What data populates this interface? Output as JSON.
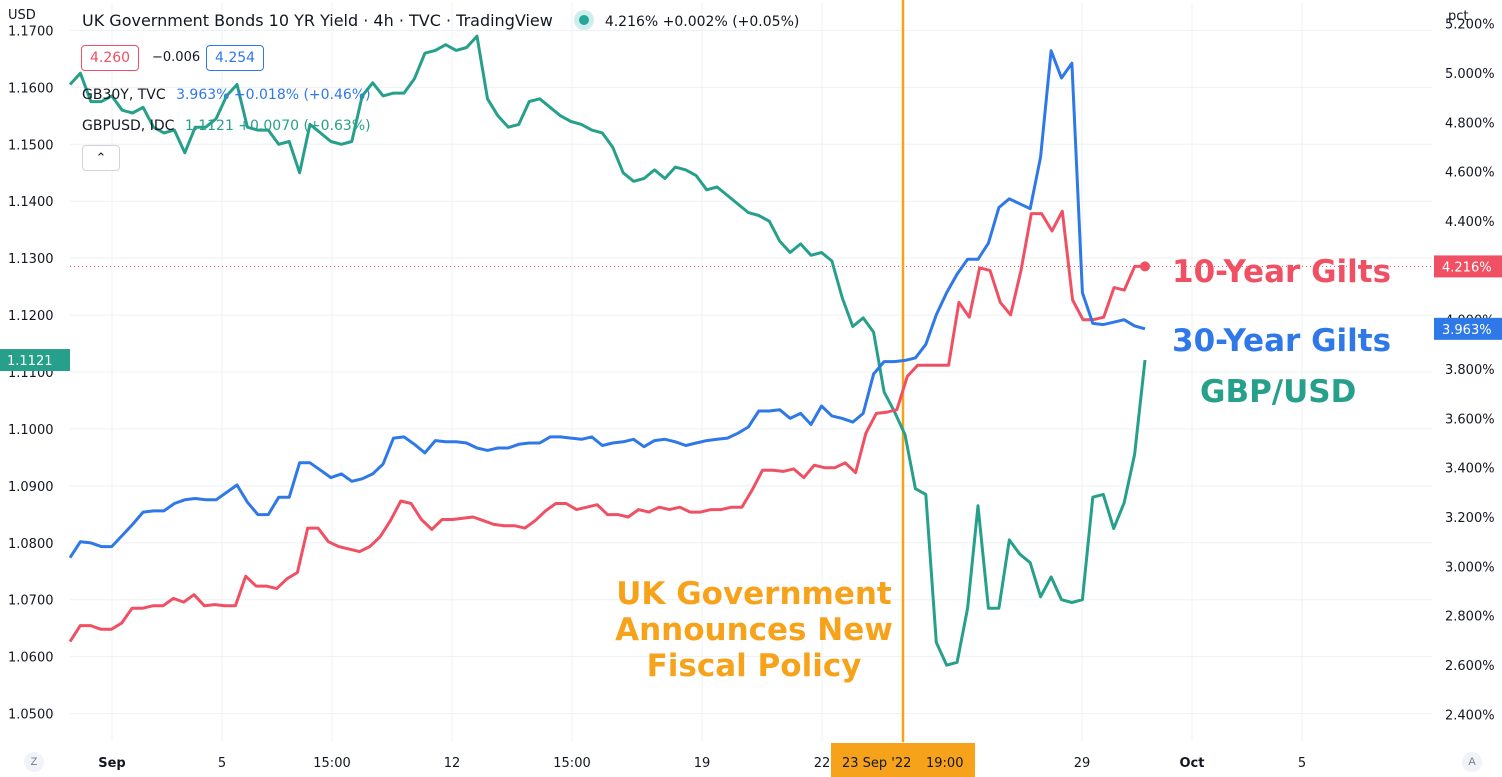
{
  "header": {
    "title": "UK Government Bonds 10 YR Yield · 4h · TVC · TradingView",
    "last_change": "4.216% +0.002% (+0.05%)",
    "bid": "4.260",
    "spread": "−0.006",
    "ask": "4.254",
    "series_legend": [
      {
        "symbol": "GB30Y, TVC",
        "values": "3.963% +0.018% (+0.46%)"
      },
      {
        "symbol": "GBPUSD, IDC",
        "values": "1.1121 +0.0070 (+0.63%)"
      }
    ],
    "collapse_icon": "chevron-up-icon"
  },
  "axes": {
    "left_unit": "USD",
    "right_unit": "pct",
    "corner_left": "Z",
    "corner_right": "A"
  },
  "price_tags": {
    "gbpusd": "1.1121",
    "gilt10": "4.216%",
    "gilt30": "3.963%",
    "crosshair_date": "23 Sep '22",
    "crosshair_time": "19:00"
  },
  "annotations": {
    "event": [
      "UK Government",
      "Announces New",
      "Fiscal Policy"
    ],
    "gilt10": "10-Year Gilts",
    "gilt30": "30-Year Gilts",
    "gbpusd": "GBP/USD"
  },
  "colors": {
    "gilt10": "#f05063",
    "gilt30": "#2f78e8",
    "gbpusd": "#26a08a",
    "event": "#f7a21b",
    "grid": "#eef0f3"
  },
  "chart_data": {
    "type": "line",
    "grid": true,
    "x_tick_labels": [
      "Sep",
      "5",
      "15:00",
      "12",
      "15:00",
      "19",
      "22",
      "29",
      "Oct",
      "5"
    ],
    "left_axis": {
      "unit": "USD",
      "ylim": [
        1.045,
        1.175
      ],
      "ticks": [
        "1.0500",
        "1.0600",
        "1.0700",
        "1.0800",
        "1.0900",
        "1.1000",
        "1.1100",
        "1.1200",
        "1.1300",
        "1.1400",
        "1.1500",
        "1.1600",
        "1.1700"
      ]
    },
    "right_axis": {
      "unit": "pct",
      "ylim": [
        2.288,
        5.288
      ],
      "ticks": [
        "2.400%",
        "2.600%",
        "2.800%",
        "3.000%",
        "3.200%",
        "3.400%",
        "3.600%",
        "3.800%",
        "4.000%",
        "4.200%",
        "4.400%",
        "4.600%",
        "4.800%",
        "5.000%",
        "5.200%"
      ]
    },
    "event_marker": "23 Sep '22 19:00",
    "series": [
      {
        "name": "GBP/USD",
        "axis": "left",
        "values": [
          1.1605,
          1.1625,
          1.1575,
          1.1575,
          1.1585,
          1.156,
          1.1555,
          1.1565,
          1.153,
          1.152,
          1.1525,
          1.1485,
          1.153,
          1.153,
          1.1545,
          1.1585,
          1.1605,
          1.153,
          1.1525,
          1.1525,
          1.15,
          1.1505,
          1.145,
          1.1535,
          1.152,
          1.1505,
          1.15,
          1.1505,
          1.1585,
          1.1608,
          1.1585,
          1.159,
          1.159,
          1.1615,
          1.166,
          1.1665,
          1.1675,
          1.1665,
          1.167,
          1.169,
          1.158,
          1.155,
          1.153,
          1.1535,
          1.1575,
          1.158,
          1.1565,
          1.155,
          1.154,
          1.1535,
          1.1525,
          1.152,
          1.1495,
          1.145,
          1.1435,
          1.144,
          1.1455,
          1.144,
          1.146,
          1.1455,
          1.1445,
          1.142,
          1.1425,
          1.141,
          1.1395,
          1.138,
          1.1375,
          1.1365,
          1.133,
          1.131,
          1.1325,
          1.1305,
          1.131,
          1.1295,
          1.123,
          1.118,
          1.1195,
          1.117,
          1.1065,
          1.103,
          1.099,
          1.0895,
          1.0885,
          1.0625,
          1.0585,
          1.059,
          1.0685,
          1.0865,
          1.0685,
          1.0685,
          1.0805,
          1.078,
          1.0765,
          1.0705,
          1.074,
          1.07,
          1.0695,
          1.07,
          1.088,
          1.0885,
          1.0825,
          1.087,
          1.0955,
          1.1121
        ]
      },
      {
        "name": "10-Year Gilts",
        "axis": "right",
        "values": [
          2.695,
          2.76,
          2.76,
          2.745,
          2.745,
          2.77,
          2.83,
          2.83,
          2.84,
          2.84,
          2.87,
          2.855,
          2.885,
          2.84,
          2.845,
          2.84,
          2.84,
          2.96,
          2.92,
          2.92,
          2.91,
          2.95,
          2.975,
          3.155,
          3.155,
          3.1,
          3.08,
          3.07,
          3.06,
          3.08,
          3.12,
          3.185,
          3.265,
          3.255,
          3.19,
          3.15,
          3.19,
          3.19,
          3.195,
          3.2,
          3.185,
          3.17,
          3.165,
          3.165,
          3.155,
          3.185,
          3.225,
          3.255,
          3.255,
          3.23,
          3.24,
          3.25,
          3.21,
          3.21,
          3.2,
          3.23,
          3.22,
          3.24,
          3.23,
          3.24,
          3.22,
          3.22,
          3.23,
          3.23,
          3.24,
          3.24,
          3.31,
          3.39,
          3.39,
          3.385,
          3.395,
          3.36,
          3.41,
          3.4,
          3.4,
          3.42,
          3.38,
          3.54,
          3.62,
          3.625,
          3.635,
          3.77,
          3.815,
          3.815,
          3.815,
          3.815,
          4.07,
          4.01,
          4.21,
          4.2,
          4.07,
          4.02,
          4.2,
          4.43,
          4.43,
          4.36,
          4.44,
          4.08,
          4.0,
          4.0,
          4.01,
          4.13,
          4.12,
          4.216,
          4.216
        ]
      },
      {
        "name": "30-Year Gilts",
        "axis": "right",
        "values": [
          3.035,
          3.1,
          3.095,
          3.08,
          3.08,
          3.125,
          3.17,
          3.22,
          3.225,
          3.225,
          3.255,
          3.27,
          3.275,
          3.27,
          3.27,
          3.3,
          3.33,
          3.26,
          3.21,
          3.21,
          3.28,
          3.28,
          3.42,
          3.42,
          3.39,
          3.36,
          3.375,
          3.345,
          3.355,
          3.375,
          3.415,
          3.52,
          3.525,
          3.495,
          3.46,
          3.51,
          3.505,
          3.505,
          3.5,
          3.48,
          3.47,
          3.48,
          3.48,
          3.495,
          3.5,
          3.5,
          3.525,
          3.525,
          3.52,
          3.515,
          3.525,
          3.49,
          3.5,
          3.505,
          3.515,
          3.485,
          3.51,
          3.515,
          3.505,
          3.49,
          3.5,
          3.51,
          3.515,
          3.52,
          3.54,
          3.565,
          3.63,
          3.63,
          3.635,
          3.6,
          3.62,
          3.575,
          3.65,
          3.61,
          3.6,
          3.585,
          3.62,
          3.78,
          3.83,
          3.83,
          3.835,
          3.845,
          3.9,
          4.02,
          4.11,
          4.185,
          4.245,
          4.245,
          4.31,
          4.455,
          4.49,
          4.47,
          4.45,
          4.66,
          5.09,
          4.98,
          5.04,
          4.11,
          3.985,
          3.98,
          3.99,
          4.0,
          3.975,
          3.963
        ]
      }
    ]
  }
}
